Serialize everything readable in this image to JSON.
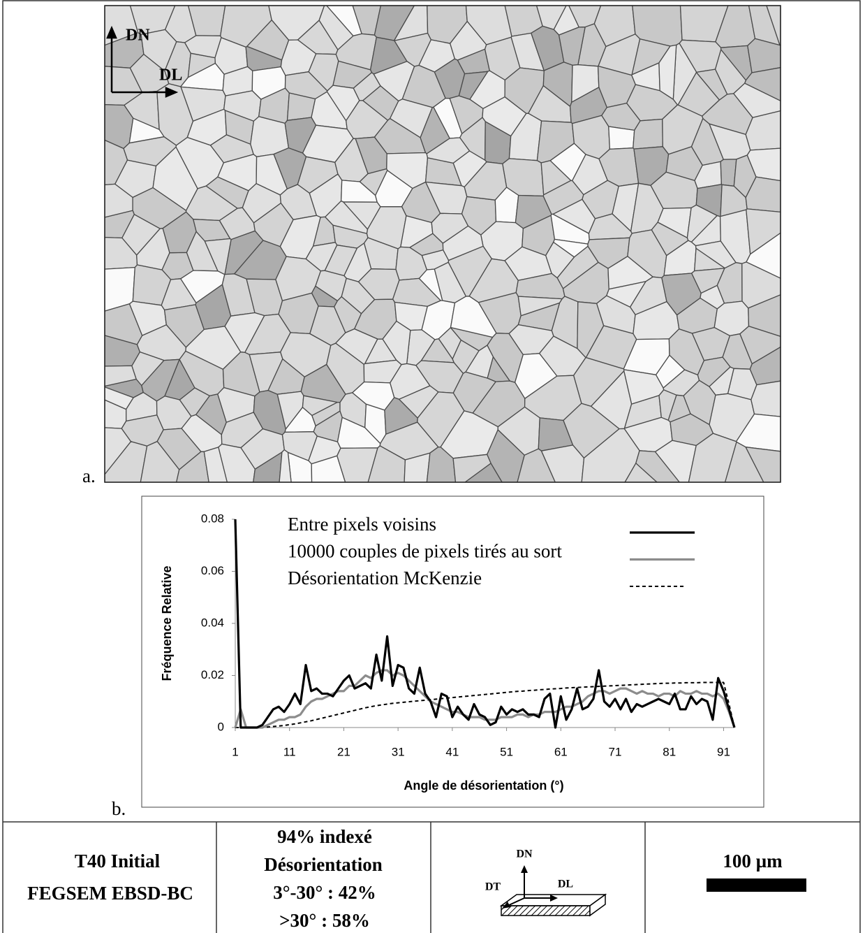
{
  "figure": {
    "map_axes": {
      "up": "DN",
      "right": "DL"
    },
    "panel_a": "a.",
    "panel_b": "b."
  },
  "chart_data": {
    "type": "line",
    "x_label": "Angle de désorientation (°)",
    "y_label": "Fréquence Relative",
    "x": [
      1,
      2,
      3,
      4,
      5,
      6,
      7,
      8,
      9,
      10,
      11,
      12,
      13,
      14,
      15,
      16,
      17,
      18,
      19,
      20,
      21,
      22,
      23,
      24,
      25,
      26,
      27,
      28,
      29,
      30,
      31,
      32,
      33,
      34,
      35,
      36,
      37,
      38,
      39,
      40,
      41,
      42,
      43,
      44,
      45,
      46,
      47,
      48,
      49,
      50,
      51,
      52,
      53,
      54,
      55,
      56,
      57,
      58,
      59,
      60,
      61,
      62,
      63,
      64,
      65,
      66,
      67,
      68,
      69,
      70,
      71,
      72,
      73,
      74,
      75,
      76,
      77,
      78,
      79,
      80,
      81,
      82,
      83,
      84,
      85,
      86,
      87,
      88,
      89,
      90,
      91,
      92,
      93
    ],
    "xlim": [
      1,
      93
    ],
    "xticks": [
      1,
      11,
      21,
      31,
      41,
      51,
      61,
      71,
      81,
      91
    ],
    "ylim": [
      0,
      0.08
    ],
    "yticks": [
      0,
      0.02,
      0.04,
      0.06,
      0.08
    ],
    "series": [
      {
        "name": "Entre pixels voisins",
        "color": "#000000",
        "dash": false,
        "values": [
          0.08,
          0,
          0,
          0,
          0,
          0.001,
          0.004,
          0.007,
          0.008,
          0.006,
          0.009,
          0.013,
          0.009,
          0.024,
          0.014,
          0.015,
          0.013,
          0.013,
          0.012,
          0.015,
          0.018,
          0.02,
          0.015,
          0.016,
          0.017,
          0.015,
          0.028,
          0.018,
          0.035,
          0.016,
          0.024,
          0.023,
          0.015,
          0.013,
          0.023,
          0.013,
          0.01,
          0.004,
          0.013,
          0.012,
          0.004,
          0.008,
          0.005,
          0.003,
          0.009,
          0.005,
          0.004,
          0.001,
          0.002,
          0.008,
          0.005,
          0.007,
          0.006,
          0.007,
          0.005,
          0.005,
          0.004,
          0.011,
          0.013,
          0,
          0.012,
          0.003,
          0.007,
          0.015,
          0.007,
          0.008,
          0.011,
          0.022,
          0.01,
          0.008,
          0.011,
          0.007,
          0.011,
          0.006,
          0.009,
          0.008,
          0.009,
          0.01,
          0.011,
          0.01,
          0.009,
          0.013,
          0.007,
          0.007,
          0.012,
          0.009,
          0.011,
          0.01,
          0.003,
          0.019,
          0.014,
          0.007,
          0
        ]
      },
      {
        "name": "10000 couples de pixels tirés au sort",
        "color": "#8c8c8c",
        "dash": false,
        "values": [
          0,
          0.007,
          0,
          0,
          0,
          0,
          0.001,
          0.002,
          0.003,
          0.003,
          0.004,
          0.004,
          0.005,
          0.008,
          0.01,
          0.011,
          0.011,
          0.012,
          0.013,
          0.014,
          0.014,
          0.016,
          0.016,
          0.018,
          0.02,
          0.019,
          0.021,
          0.022,
          0.022,
          0.02,
          0.021,
          0.02,
          0.018,
          0.016,
          0.014,
          0.012,
          0.01,
          0.009,
          0.008,
          0.007,
          0.006,
          0.006,
          0.005,
          0.004,
          0.004,
          0.004,
          0.003,
          0.003,
          0.003,
          0.004,
          0.004,
          0.004,
          0.005,
          0.005,
          0.004,
          0.005,
          0.005,
          0.006,
          0.006,
          0.006,
          0.007,
          0.008,
          0.008,
          0.009,
          0.01,
          0.012,
          0.013,
          0.014,
          0.014,
          0.013,
          0.014,
          0.015,
          0.015,
          0.014,
          0.013,
          0.014,
          0.013,
          0.013,
          0.012,
          0.013,
          0.013,
          0.012,
          0.014,
          0.013,
          0.013,
          0.014,
          0.013,
          0.013,
          0.012,
          0.013,
          0.011,
          0.006,
          0
        ]
      },
      {
        "name": "Désorientation McKenzie",
        "color": "#000000",
        "dash": true,
        "values": [
          0,
          0,
          0,
          0,
          0,
          0,
          0.0002,
          0.0004,
          0.0006,
          0.0008,
          0.0011,
          0.0014,
          0.0018,
          0.0022,
          0.0026,
          0.0031,
          0.0036,
          0.0041,
          0.0046,
          0.0051,
          0.0056,
          0.0061,
          0.0066,
          0.0071,
          0.0076,
          0.008,
          0.0084,
          0.0087,
          0.009,
          0.0093,
          0.0095,
          0.0097,
          0.0099,
          0.0101,
          0.0103,
          0.0105,
          0.0107,
          0.0109,
          0.0111,
          0.0113,
          0.0115,
          0.0117,
          0.0119,
          0.0121,
          0.0123,
          0.0125,
          0.0127,
          0.0129,
          0.0131,
          0.0133,
          0.0135,
          0.0137,
          0.0139,
          0.014,
          0.0142,
          0.0143,
          0.0145,
          0.0146,
          0.0148,
          0.0149,
          0.015,
          0.0152,
          0.0153,
          0.0154,
          0.0155,
          0.0156,
          0.0157,
          0.0158,
          0.0159,
          0.016,
          0.0161,
          0.0162,
          0.0163,
          0.0164,
          0.0165,
          0.0166,
          0.0167,
          0.0168,
          0.0169,
          0.017,
          0.017,
          0.0171,
          0.0171,
          0.0172,
          0.0172,
          0.0172,
          0.0173,
          0.0173,
          0.0173,
          0.0173,
          0.0173,
          0.009,
          0
        ]
      }
    ]
  },
  "info_table": {
    "sample": [
      "T40 Initial",
      "FEGSEM EBSD-BC"
    ],
    "stats": [
      "94% indexé",
      "Désorientation",
      "3°-30° : 42%",
      ">30° : 58%"
    ],
    "frame": {
      "normal": "DN",
      "transverse": "DT",
      "rolling": "DL"
    },
    "scale_bar": "100 µm"
  }
}
